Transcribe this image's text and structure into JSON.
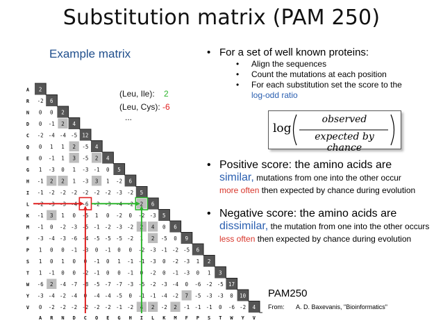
{
  "title": "Substitution matrix (PAM 250)",
  "example_heading": "Example matrix",
  "legend": {
    "leu_ile_label": "(Leu, Ile):",
    "leu_ile_value": "2",
    "leu_cys_label": "(Leu, Cys):",
    "leu_cys_value": "-6",
    "ellipsis": "..."
  },
  "bullets": {
    "main": "For a set of well known proteins:",
    "sub": [
      {
        "text": "Align the sequences"
      },
      {
        "text": "Count the mutations at each position"
      },
      {
        "text": "For each substitution set the score to the",
        "highlight": "log-odd ratio"
      }
    ]
  },
  "formula": {
    "log": "log",
    "numerator": "observed",
    "denominator": "expected by chance"
  },
  "positive": {
    "lead": "Positive score: the amino acids are",
    "word": "similar,",
    "rest1": " mutations from one into the other occur",
    "highlight": "more often",
    "rest2": " then expected by chance during evolution"
  },
  "negative": {
    "lead": "Negative score: the amino acids are",
    "word": "dissimilar,",
    "rest1": " the mutation from one into the other occurs ",
    "highlight": "less often",
    "rest2": " then expected by chance during evolution"
  },
  "pam_label": "PAM250",
  "source": {
    "from": "From:",
    "citation": "A. D. Baxevanis, \"Bioinformatics\""
  },
  "matrix": {
    "amino_acids": [
      "A",
      "R",
      "N",
      "D",
      "C",
      "Q",
      "E",
      "G",
      "H",
      "I",
      "L",
      "K",
      "M",
      "F",
      "P",
      "S",
      "T",
      "W",
      "Y",
      "V"
    ],
    "rows": [
      [
        "2"
      ],
      [
        "-2",
        "6"
      ],
      [
        "0",
        "0",
        "2"
      ],
      [
        "0",
        "-1",
        "2",
        "4"
      ],
      [
        "-2",
        "-4",
        "-4",
        "-5",
        "12"
      ],
      [
        "0",
        "1",
        "1",
        "2",
        "-5",
        "4"
      ],
      [
        "0",
        "-1",
        "1",
        "3",
        "-5",
        "2",
        "4"
      ],
      [
        "1",
        "-3",
        "0",
        "1",
        "-3",
        "-1",
        "0",
        "5"
      ],
      [
        "-1",
        "2",
        "2",
        "1",
        "-3",
        "3",
        "1",
        "-2",
        "6"
      ],
      [
        "-1",
        "-2",
        "-2",
        "-2",
        "-2",
        "-2",
        "-2",
        "-3",
        "-2",
        "5"
      ],
      [
        "-2",
        "-3",
        "-3",
        "-4",
        "-6",
        "-2",
        "-3",
        "-4",
        "-2",
        "2",
        "6"
      ],
      [
        "-1",
        "3",
        "1",
        "0",
        "-5",
        "1",
        "0",
        "-2",
        "0",
        "-2",
        "-3",
        "5"
      ],
      [
        "-1",
        "0",
        "-2",
        "-3",
        "-5",
        "-1",
        "-2",
        "-3",
        "-2",
        "2",
        "4",
        "0",
        "6"
      ],
      [
        "-3",
        "-4",
        "-3",
        "-6",
        "-4",
        "-5",
        "-5",
        "-5",
        "-2",
        "1",
        "2",
        "-5",
        "0",
        "9"
      ],
      [
        "1",
        "0",
        "0",
        "-1",
        "-3",
        "0",
        "-1",
        "0",
        "0",
        "-2",
        "-3",
        "-1",
        "-2",
        "-5",
        "6"
      ],
      [
        "1",
        "0",
        "1",
        "0",
        "0",
        "-1",
        "0",
        "1",
        "-1",
        "-1",
        "-3",
        "0",
        "-2",
        "-3",
        "1",
        "2"
      ],
      [
        "1",
        "-1",
        "0",
        "0",
        "-2",
        "-1",
        "0",
        "0",
        "-1",
        "0",
        "-2",
        "0",
        "-1",
        "-3",
        "0",
        "1",
        "3"
      ],
      [
        "-6",
        "2",
        "-4",
        "-7",
        "-8",
        "-5",
        "-7",
        "-7",
        "-3",
        "-5",
        "-2",
        "-3",
        "-4",
        "0",
        "-6",
        "-2",
        "-5",
        "17"
      ],
      [
        "-3",
        "-4",
        "-2",
        "-4",
        "0",
        "-4",
        "-4",
        "-5",
        "0",
        "-1",
        "-1",
        "-4",
        "-2",
        "7",
        "-5",
        "-3",
        "-3",
        "0",
        "10"
      ],
      [
        "0",
        "-2",
        "-2",
        "-2",
        "-2",
        "-2",
        "-2",
        "-1",
        "-2",
        "4",
        "2",
        "-2",
        "2",
        "-1",
        "-1",
        "-1",
        "0",
        "-6",
        "-2",
        "4"
      ]
    ],
    "colors": {
      "shade": "#bdbdbd",
      "dark": "#555555",
      "red": "#e02020",
      "green": "#2db52d"
    }
  }
}
